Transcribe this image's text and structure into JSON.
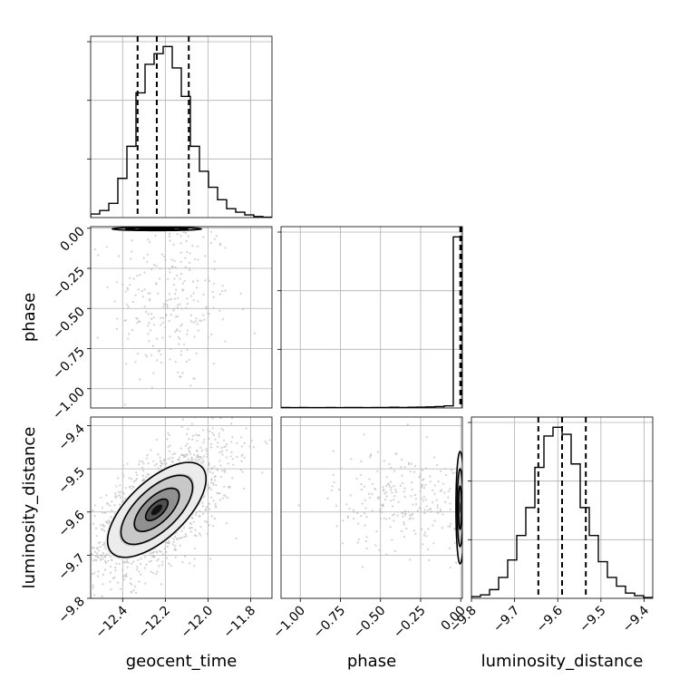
{
  "chart_data": {
    "type": "corner",
    "parameters": [
      "geocent_time",
      "phase",
      "luminosity_distance"
    ],
    "labels": {
      "geocent_time": "geocent_time",
      "phase": "phase",
      "luminosity_distance": "luminosity_distance"
    },
    "ranges": {
      "geocent_time": [
        -12.55,
        -11.7
      ],
      "phase": [
        -1.12,
        0.01
      ],
      "luminosity_distance": [
        -9.8,
        -9.38
      ]
    },
    "ticks": {
      "geocent_time": [
        {
          "v": -12.4,
          "label": "−12.4"
        },
        {
          "v": -12.2,
          "label": "−12.2"
        },
        {
          "v": -12.0,
          "label": "−12.0"
        },
        {
          "v": -11.8,
          "label": "−11.8"
        }
      ],
      "phase": [
        {
          "v": -1.0,
          "label": "−1.00"
        },
        {
          "v": -0.75,
          "label": "−0.75"
        },
        {
          "v": -0.5,
          "label": "−0.50"
        },
        {
          "v": -0.25,
          "label": "−0.25"
        },
        {
          "v": 0.0,
          "label": "0.00"
        }
      ],
      "luminosity_distance": [
        {
          "v": -9.8,
          "label": "−9.8"
        },
        {
          "v": -9.7,
          "label": "−9.7"
        },
        {
          "v": -9.6,
          "label": "−9.6"
        },
        {
          "v": -9.5,
          "label": "−9.5"
        },
        {
          "v": -9.4,
          "label": "−9.4"
        }
      ]
    },
    "histograms": {
      "geocent_time": {
        "bin_edges": [
          -12.55,
          -12.5075,
          -12.465,
          -12.4225,
          -12.38,
          -12.3375,
          -12.295,
          -12.2525,
          -12.21,
          -12.1675,
          -12.125,
          -12.0825,
          -12.04,
          -11.9975,
          -11.955,
          -11.9125,
          -11.87,
          -11.8275,
          -11.785,
          -11.7425,
          -11.7
        ],
        "counts": [
          0.02,
          0.04,
          0.08,
          0.22,
          0.4,
          0.7,
          0.86,
          0.92,
          0.96,
          0.84,
          0.68,
          0.4,
          0.26,
          0.17,
          0.1,
          0.05,
          0.03,
          0.015,
          0.006,
          0.002
        ],
        "quantiles": [
          -12.33,
          -12.24,
          -12.09
        ]
      },
      "phase": {
        "bin_edges": [
          -1.12,
          -1.0635,
          -1.007,
          -0.9505,
          -0.894,
          -0.8375,
          -0.781,
          -0.7245,
          -0.668,
          -0.6115,
          -0.555,
          -0.4985,
          -0.442,
          -0.3855,
          -0.329,
          -0.2725,
          -0.216,
          -0.1595,
          -0.103,
          -0.0465,
          0.01
        ],
        "counts": [
          0.003,
          0.002,
          0.003,
          0.002,
          0.002,
          0.003,
          0.002,
          0.003,
          0.003,
          0.002,
          0.003,
          0.003,
          0.004,
          0.003,
          0.004,
          0.005,
          0.006,
          0.008,
          0.012,
          1.0
        ],
        "quantiles": [
          -0.003,
          0.0,
          0.003
        ]
      },
      "luminosity_distance": {
        "bin_edges": [
          -9.8,
          -9.779,
          -9.758,
          -9.737,
          -9.716,
          -9.695,
          -9.674,
          -9.653,
          -9.632,
          -9.611,
          -9.59,
          -9.569,
          -9.548,
          -9.527,
          -9.506,
          -9.485,
          -9.464,
          -9.443,
          -9.422,
          -9.401,
          -9.38
        ],
        "counts": [
          0.01,
          0.02,
          0.05,
          0.12,
          0.22,
          0.36,
          0.52,
          0.75,
          0.93,
          0.98,
          0.94,
          0.77,
          0.52,
          0.36,
          0.21,
          0.12,
          0.07,
          0.03,
          0.015,
          0.005
        ],
        "quantiles": [
          -9.645,
          -9.59,
          -9.535
        ]
      }
    },
    "joint": [
      {
        "x": "geocent_time",
        "y": "phase",
        "mean": [
          -12.24,
          -0.004
        ],
        "sd": [
          0.08,
          0.004
        ],
        "rho": 0.0,
        "contour_levels": [
          1.0,
          1.8,
          2.6
        ],
        "scatter_center": [
          -12.17,
          -0.45
        ],
        "scatter_sd": [
          0.14,
          0.28
        ]
      },
      {
        "x": "geocent_time",
        "y": "luminosity_distance",
        "mean": [
          -12.24,
          -9.595
        ],
        "sd": [
          0.105,
          0.05
        ],
        "rho": 0.65,
        "contour_levels": [
          0.5,
          1.0,
          1.6,
          2.2
        ],
        "scatter_center": [
          -12.22,
          -9.59
        ],
        "scatter_sd": [
          0.17,
          0.085
        ]
      },
      {
        "x": "phase",
        "y": "luminosity_distance",
        "mean": [
          -0.004,
          -9.59
        ],
        "sd": [
          0.01,
          0.05
        ],
        "rho": 0.0,
        "contour_levels": [
          1.0,
          1.8,
          2.6
        ],
        "scatter_center": [
          -0.35,
          -9.57
        ],
        "scatter_sd": [
          0.22,
          0.06
        ]
      }
    ],
    "grid": true,
    "quantile_style": "dashed",
    "colors": {
      "line": "#000000",
      "grid": "#b0b0b0",
      "scatter": "#bdbdbd"
    }
  }
}
